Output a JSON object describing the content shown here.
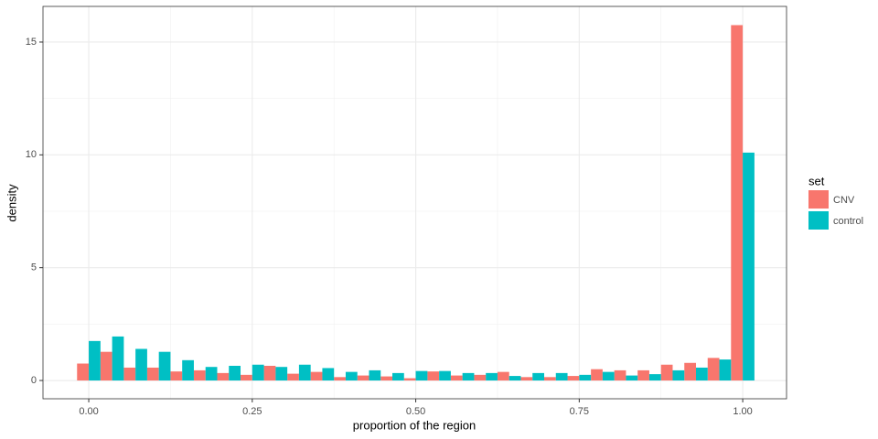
{
  "chart_data": {
    "type": "histogram",
    "xlabel": "proportion of the region",
    "ylabel": "density",
    "legend_title": "set",
    "legend": "right",
    "bins": [
      -0.0179,
      0.0179,
      0.0536,
      0.0893,
      0.125,
      0.1607,
      0.1964,
      0.2321,
      0.2679,
      0.3036,
      0.3393,
      0.375,
      0.4107,
      0.4464,
      0.4821,
      0.5179,
      0.5536,
      0.5893,
      0.625,
      0.6607,
      0.6964,
      0.7321,
      0.7679,
      0.8036,
      0.8393,
      0.875,
      0.9107,
      0.9464,
      0.9821,
      1.0179
    ],
    "series": [
      {
        "name": "CNV",
        "color": "#f8766d",
        "values": [
          0.75,
          1.27,
          0.57,
          0.57,
          0.4,
          0.45,
          0.33,
          0.25,
          0.65,
          0.3,
          0.38,
          0.15,
          0.22,
          0.18,
          0.1,
          0.4,
          0.22,
          0.25,
          0.38,
          0.15,
          0.15,
          0.2,
          0.5,
          0.45,
          0.45,
          0.7,
          0.78,
          1.0,
          15.75
        ]
      },
      {
        "name": "control",
        "color": "#00bfc4",
        "values": [
          1.75,
          1.95,
          1.4,
          1.27,
          0.9,
          0.6,
          0.65,
          0.7,
          0.6,
          0.7,
          0.55,
          0.38,
          0.45,
          0.33,
          0.42,
          0.42,
          0.33,
          0.33,
          0.2,
          0.33,
          0.33,
          0.25,
          0.38,
          0.22,
          0.28,
          0.45,
          0.57,
          0.93,
          10.1
        ]
      }
    ],
    "xlim": [
      -0.07,
      1.067
    ],
    "ylim": [
      -0.81,
      16.58
    ],
    "xticks": [
      {
        "value": 0,
        "label": "0.00"
      },
      {
        "value": 0.25,
        "label": "0.25"
      },
      {
        "value": 0.5,
        "label": "0.50"
      },
      {
        "value": 0.75,
        "label": "0.75"
      },
      {
        "value": 1,
        "label": "1.00"
      }
    ],
    "yticks": [
      0,
      5,
      10,
      15
    ],
    "x_minor_grid": [
      0.125,
      0.375,
      0.625,
      0.875
    ],
    "y_minor_grid": [
      2.5,
      7.5,
      12.5
    ],
    "grid": true
  }
}
